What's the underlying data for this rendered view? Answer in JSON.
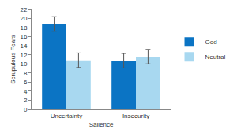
{
  "chart_data": {
    "type": "bar",
    "x_label": "Salience",
    "y_label": "Scrupulous Fears",
    "categories": [
      "Uncertainty",
      "Insecurity"
    ],
    "series": [
      {
        "name": "God",
        "color": "#0b74c4",
        "values": [
          18.8,
          10.7
        ],
        "errors": [
          1.6,
          1.6
        ]
      },
      {
        "name": "Neutral",
        "color": "#a8d8f0",
        "values": [
          10.8,
          11.6
        ],
        "errors": [
          1.6,
          1.6
        ]
      }
    ],
    "ylim": [
      0,
      22
    ],
    "yticks": [
      0,
      2,
      4,
      6,
      8,
      10,
      12,
      14,
      16,
      18,
      20,
      22
    ],
    "grid": false,
    "legend": "right"
  }
}
